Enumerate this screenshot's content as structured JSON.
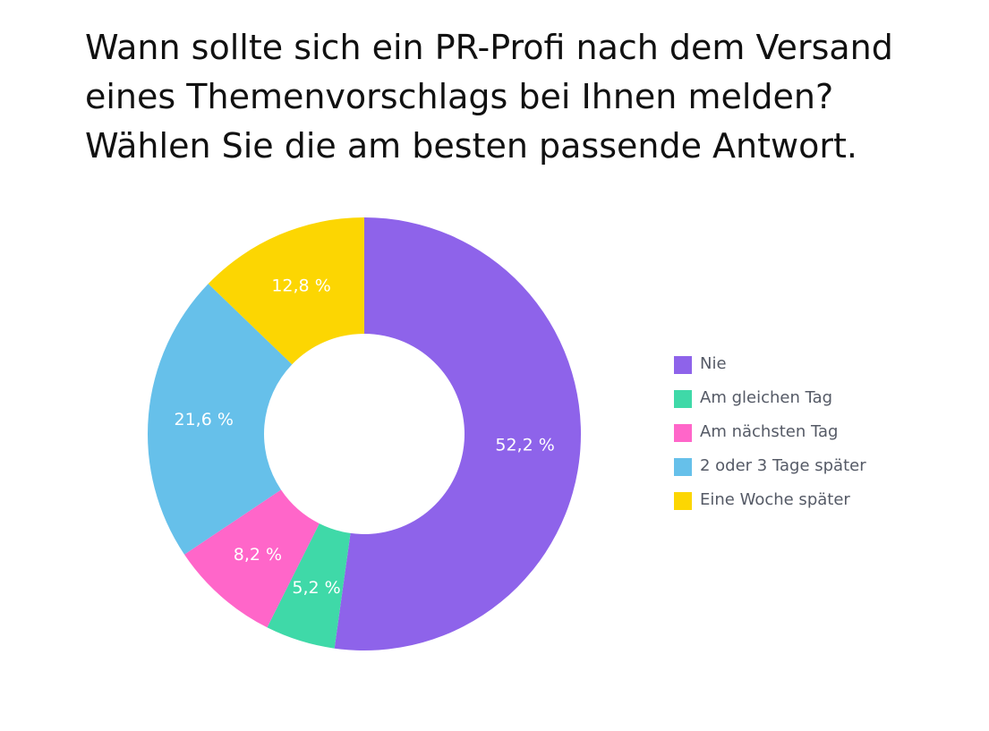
{
  "title_lines": [
    "Wann sollte sich ein PR-Profi nach dem Versand",
    "eines Themenvorschlags bei Ihnen melden?",
    "Wählen Sie die am besten passende Antwort."
  ],
  "chart_data": {
    "type": "pie",
    "style": "donut",
    "title": "Wann sollte sich ein PR-Profi nach dem Versand eines Themenvorschlags bei Ihnen melden? Wählen Sie die am besten passende Antwort.",
    "legend_position": "right",
    "categories": [
      "Nie",
      "Am gleichen Tag",
      "Am nächsten Tag",
      "2 oder 3 Tage später",
      "Eine Woche später"
    ],
    "values": [
      52.2,
      5.2,
      8.2,
      21.6,
      12.8
    ],
    "labels": [
      "52,2 %",
      "5,2 %",
      "8,2 %",
      "21,6 %",
      "12,8 %"
    ],
    "colors": [
      "#8e63ea",
      "#3fd9a8",
      "#ff66c9",
      "#66c0ea",
      "#fcd602"
    ]
  }
}
